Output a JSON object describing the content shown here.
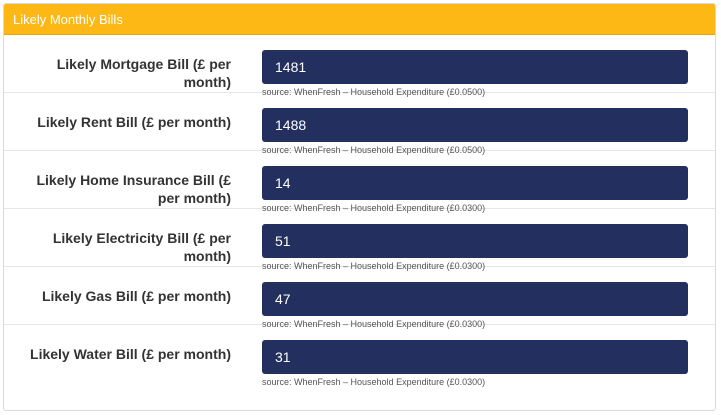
{
  "panel": {
    "title": "Likely Monthly Bills"
  },
  "rows": [
    {
      "label": "Likely Mortgage Bill (£ per month)",
      "value": "1481",
      "source": "source: WhenFresh – Household Expenditure (£0.0500)"
    },
    {
      "label": "Likely Rent Bill (£ per month)",
      "value": "1488",
      "source": "source: WhenFresh – Household Expenditure (£0.0500)"
    },
    {
      "label": "Likely Home Insurance Bill (£ per month)",
      "value": "14",
      "source": "source: WhenFresh – Household Expenditure (£0.0300)"
    },
    {
      "label": "Likely Electricity Bill (£ per month)",
      "value": "51",
      "source": "source: WhenFresh – Household Expenditure (£0.0300)"
    },
    {
      "label": "Likely Gas Bill (£ per month)",
      "value": "47",
      "source": "source: WhenFresh – Household Expenditure (£0.0300)"
    },
    {
      "label": "Likely Water Bill (£ per month)",
      "value": "31",
      "source": "source: WhenFresh – Household Expenditure (£0.0300)"
    }
  ],
  "colors": {
    "header_background": "#fdb816",
    "field_background": "#23305f"
  }
}
